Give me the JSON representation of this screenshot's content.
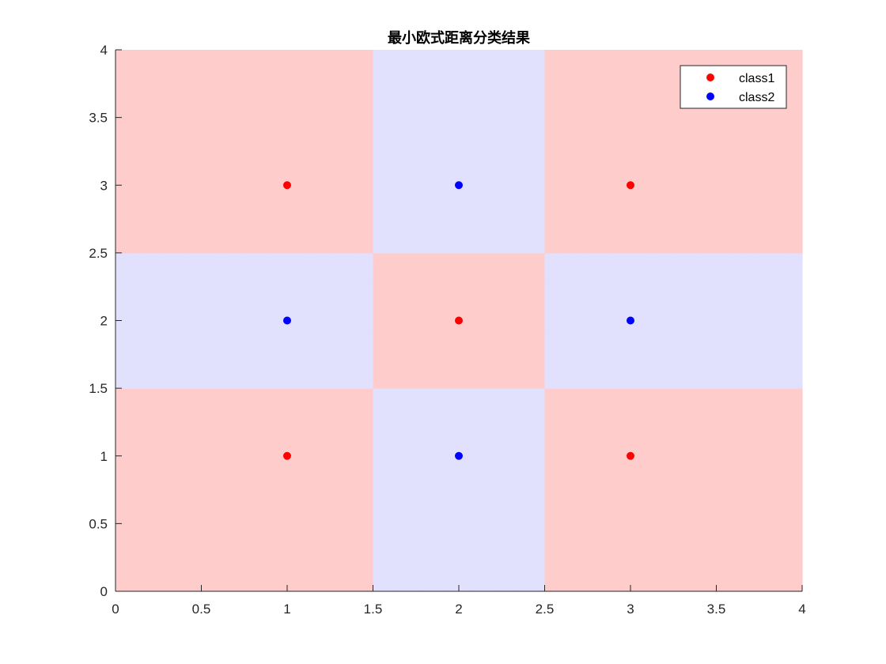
{
  "chart_data": {
    "type": "scatter",
    "title": "最小欧式距离分类结果",
    "xlabel": "",
    "ylabel": "",
    "xlim": [
      0,
      4
    ],
    "ylim": [
      0,
      4
    ],
    "xticks": [
      "0",
      "0.5",
      "1",
      "1.5",
      "2",
      "2.5",
      "3",
      "3.5",
      "4"
    ],
    "yticks": [
      "0",
      "0.5",
      "1",
      "1.5",
      "2",
      "2.5",
      "3",
      "3.5",
      "4"
    ],
    "grid": false,
    "legend_position": "top-right",
    "background_regions": "nearest-training-point decision regions (class1 shaded pink, class2 shaded lavender)",
    "series": [
      {
        "name": "class1",
        "color": "#ff0000",
        "region_color": "#ffcccc",
        "points": [
          [
            1,
            1
          ],
          [
            1,
            3
          ],
          [
            2,
            2
          ],
          [
            3,
            1
          ],
          [
            3,
            3
          ]
        ]
      },
      {
        "name": "class2",
        "color": "#0000ff",
        "region_color": "#e1e1fe",
        "points": [
          [
            1,
            2
          ],
          [
            2,
            1
          ],
          [
            2,
            3
          ],
          [
            3,
            2
          ]
        ]
      }
    ]
  }
}
